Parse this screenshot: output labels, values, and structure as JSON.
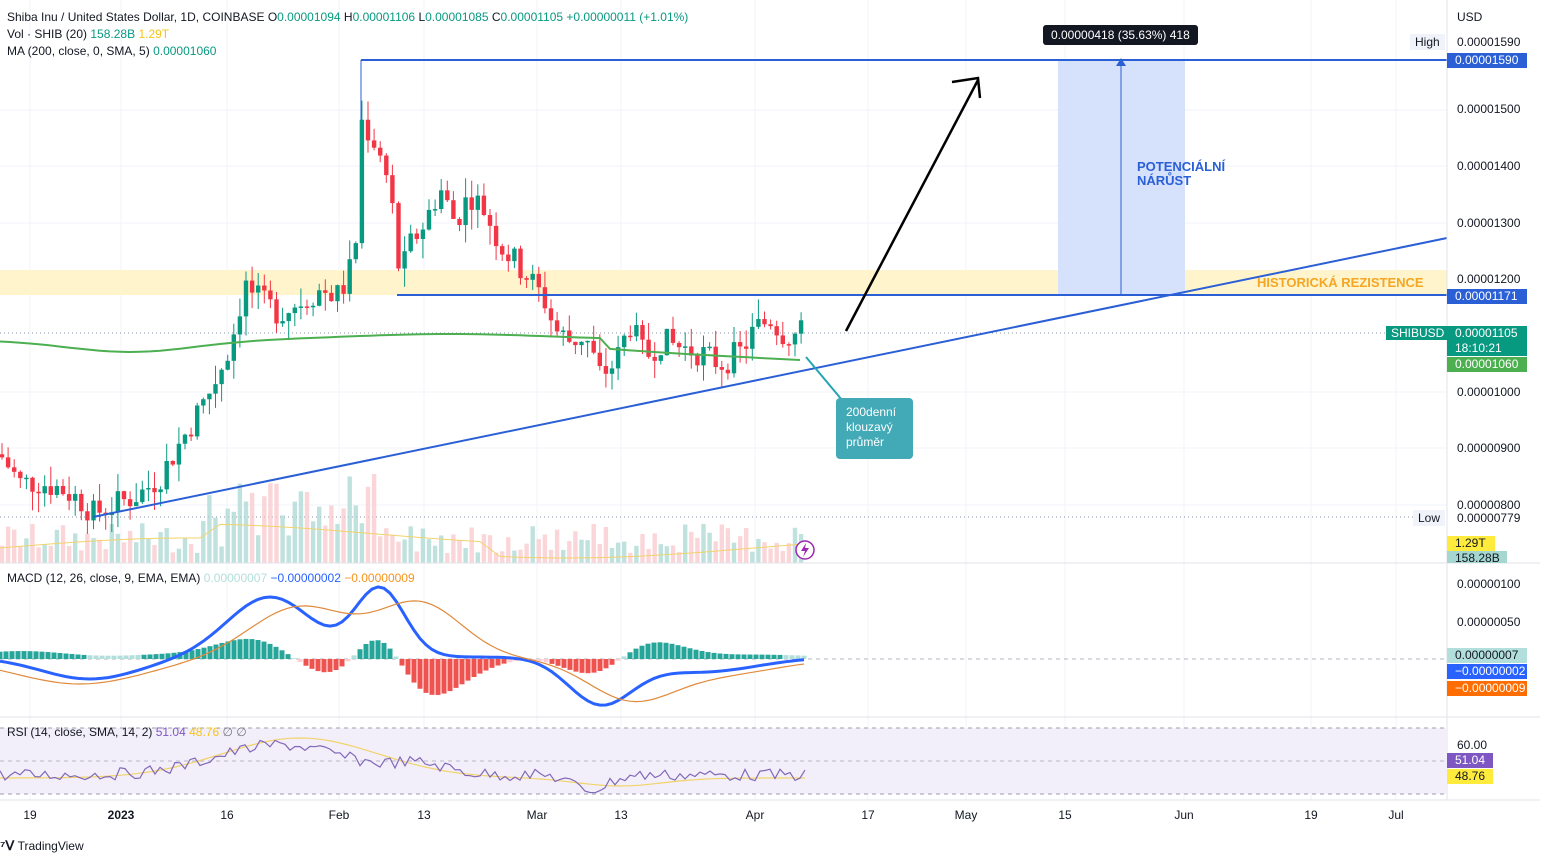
{
  "header": {
    "symbol_line": "Shiba Inu / United States Dollar, 1D, COINBASE",
    "o_label": "O",
    "o_value": "0.00001094",
    "h_label": "H",
    "h_value": "0.00001106",
    "l_label": "L",
    "l_value": "0.00001085",
    "c_label": "C",
    "c_value": "0.00001105",
    "change": "+0.00000011 (+1.01%)",
    "vol_label": "Vol · SHIB (20)",
    "vol_value": "158.28B",
    "vol_ma": "1.29T",
    "ma_label": "MA (200, close, 0, SMA, 5)",
    "ma_value": "0.00001060"
  },
  "currency": "USD",
  "price_axis": [
    "0.00001500",
    "0.00001400",
    "0.00001300",
    "0.00001200",
    "0.00001000",
    "0.00000900",
    "0.00000800"
  ],
  "price_labels": {
    "high_label": "High",
    "high_value": "0.00001590",
    "high_line": "0.00001590",
    "resistance": "0.00001171",
    "symbol_tag": "SHIBUSD",
    "last_price": "0.00001105",
    "countdown": "18:10:21",
    "ma_price": "0.00001060",
    "low_label": "Low",
    "low_value": "0.00000779",
    "vol_ma_tag": "1.29T",
    "vol_tag": "158.28B"
  },
  "measure_tooltip": "0.00000418 (35.63%) 418",
  "annotations": {
    "potential_1": "POTENCIÁLNÍ",
    "potential_2": "NÁRŮST",
    "resistance_text": "HISTORICKÁ REZISTENCE",
    "ma_note_1": "200denní",
    "ma_note_2": "klouzavý",
    "ma_note_3": "průměr"
  },
  "macd": {
    "label": "MACD (12, 26, close, 9, EMA, EMA)",
    "hist": "0.00000007",
    "macd": "−0.00000002",
    "signal": "−0.00000009",
    "axis": [
      "0.00000100",
      "0.00000050"
    ],
    "tag_hist": "0.00000007",
    "tag_macd": "−0.00000002",
    "tag_signal": "−0.00000009"
  },
  "rsi": {
    "label": "RSI (14, close, SMA, 14, 2)",
    "rsi_value": "51.04",
    "rsi_ma": "48.76",
    "axis": [
      "60.00"
    ],
    "tag_rsi": "51.04",
    "tag_ma": "48.76"
  },
  "time_axis": [
    "19",
    "2023",
    "16",
    "Feb",
    "13",
    "Mar",
    "13",
    "Apr",
    "17",
    "May",
    "15",
    "Jun",
    "19",
    "Jul"
  ],
  "footer": "TradingView",
  "colors": {
    "up": "#089981",
    "down": "#f23645",
    "ma": "#4caf50",
    "trend": "#2a5fd6",
    "resistance_band": "#fff3c4",
    "potential_box": "#cfdcf8",
    "macd": "#2962ff",
    "signal": "#ff6d00",
    "rsi": "#7e57c2"
  },
  "chart_data": {
    "type": "candlestick",
    "ohlc_last": {
      "open": 1.094e-05,
      "high": 1.106e-05,
      "low": 1.085e-05,
      "close": 1.105e-05
    },
    "high": 1.59e-05,
    "low": 7.79e-06,
    "resistance": 1.171e-05,
    "ma200": 1.06e-05,
    "ylim": [
      7.6e-06,
      1.63e-05
    ]
  }
}
